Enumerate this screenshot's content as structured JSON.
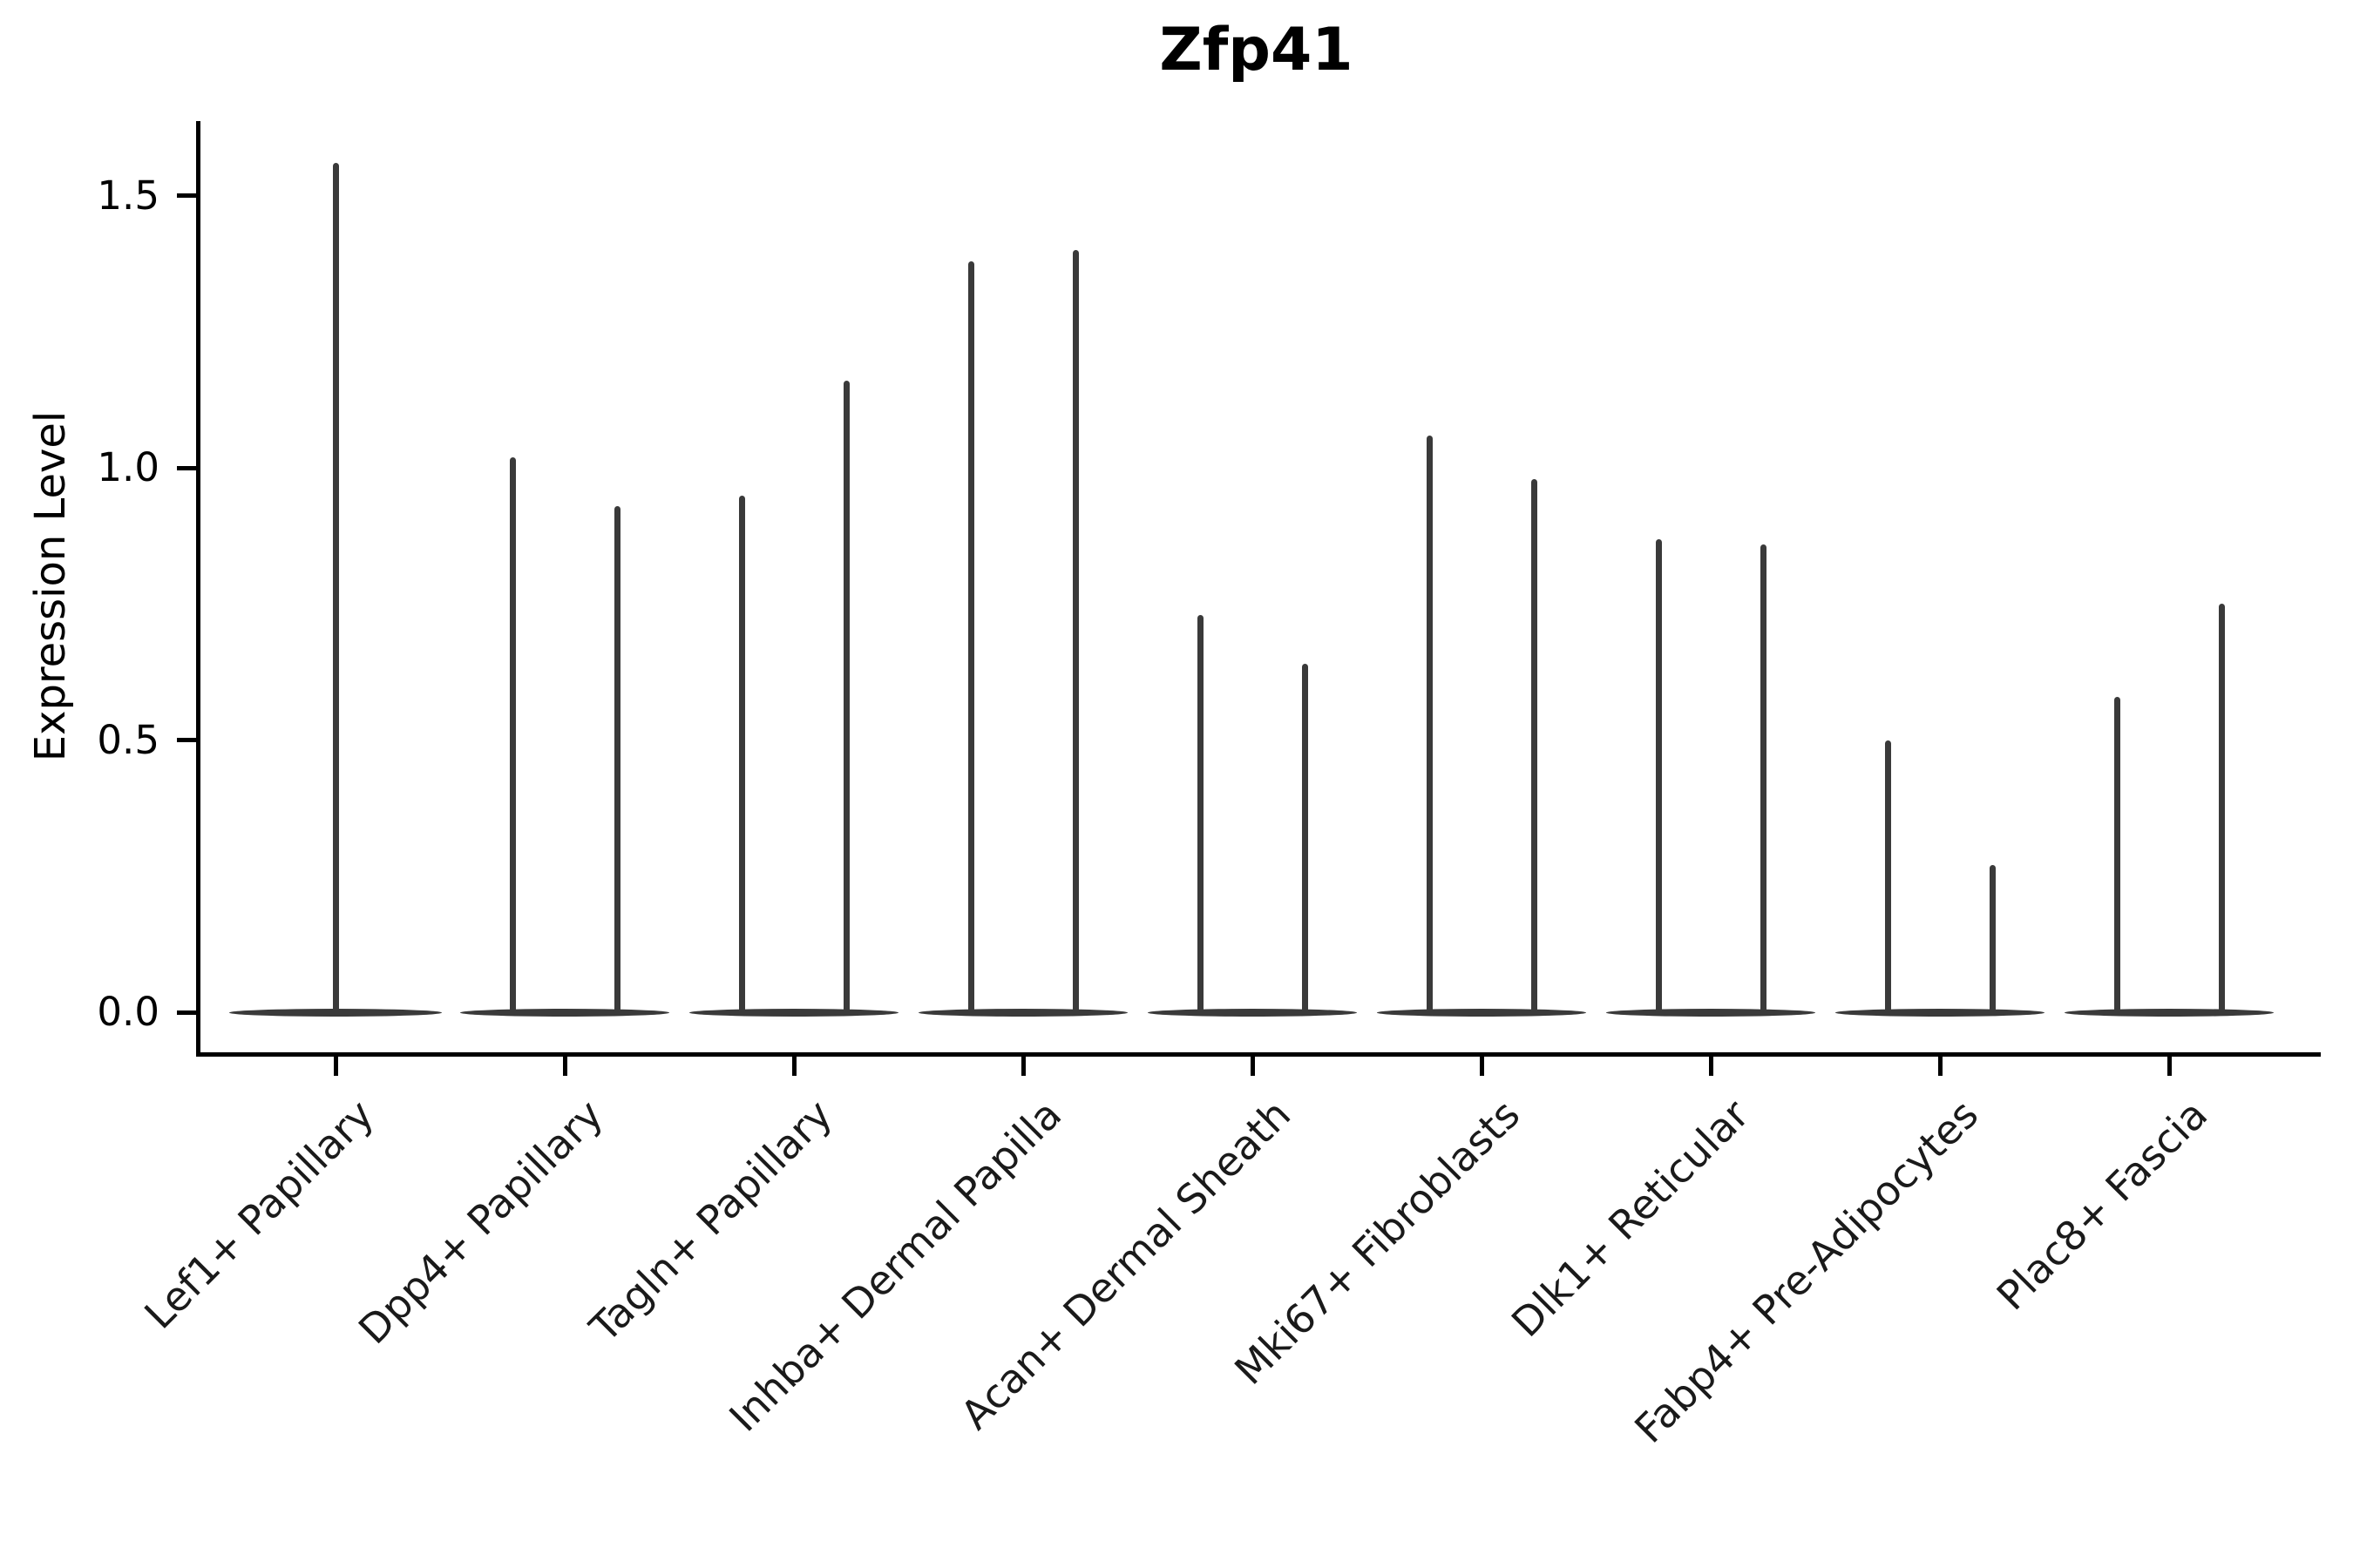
{
  "title": "Zfp41",
  "chart_data": {
    "type": "violin",
    "title": "Zfp41",
    "xlabel": "",
    "ylabel": "Expression Level",
    "ylim": [
      -0.07,
      1.64
    ],
    "yticks": [
      0.0,
      0.5,
      1.0,
      1.5
    ],
    "ytick_labels": [
      "0.0",
      "0.5",
      "1.0",
      "1.5"
    ],
    "grid": false,
    "legend": "none",
    "violin_color": "#3a3a3a",
    "x_rotation_deg": 45,
    "baseline_value": 0.0,
    "categories": [
      "Lef1+ Papillary",
      "Dpp4+ Papillary",
      "Tagln+ Papillary",
      "Inhba+ Dermal Papilla",
      "Acan+ Dermal Sheath",
      "Mki67+ Fibroblasts",
      "Dlk1+ Reticular",
      "Fabp4+ Pre-Adipocytes",
      "Plac8+ Fascia"
    ],
    "violins": [
      {
        "category": "Lef1+ Papillary",
        "layout": "single",
        "peaks": [
          1.56
        ]
      },
      {
        "category": "Dpp4+ Papillary",
        "layout": "pair",
        "peaks": [
          1.02,
          0.93
        ]
      },
      {
        "category": "Tagln+ Papillary",
        "layout": "pair",
        "peaks": [
          0.95,
          1.16
        ]
      },
      {
        "category": "Inhba+ Dermal Papilla",
        "layout": "pair",
        "peaks": [
          1.38,
          1.4
        ]
      },
      {
        "category": "Acan+ Dermal Sheath",
        "layout": "pair",
        "peaks": [
          0.73,
          0.64
        ]
      },
      {
        "category": "Mki67+ Fibroblasts",
        "layout": "pair",
        "peaks": [
          1.06,
          0.98
        ]
      },
      {
        "category": "Dlk1+ Reticular",
        "layout": "pair",
        "peaks": [
          0.87,
          0.86
        ]
      },
      {
        "category": "Fabp4+ Pre-Adipocytes",
        "layout": "pair",
        "peaks": [
          0.5,
          0.27
        ]
      },
      {
        "category": "Plac8+ Fascia",
        "layout": "pair",
        "peaks": [
          0.58,
          0.75
        ]
      }
    ],
    "description": "Violin plot of Zfp41 expression; each violin is collapsed near 0 with a thin spike up to its maximum expression value."
  }
}
